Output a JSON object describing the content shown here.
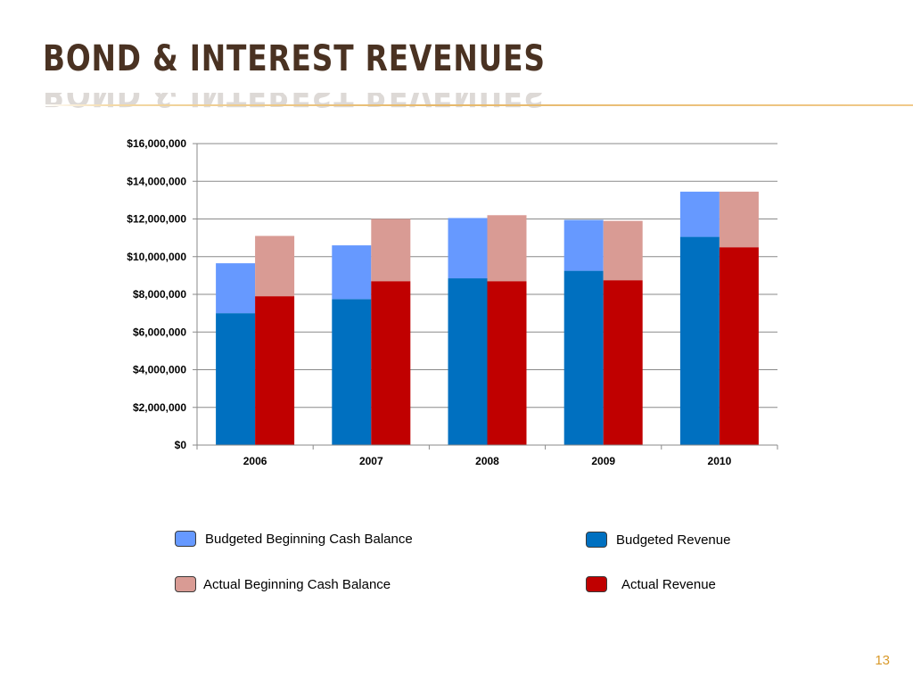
{
  "slide": {
    "title": "BOND & INTEREST REVENUES",
    "page_number": "13",
    "rule_color": "#e6b86a",
    "title_color": "#4a3222"
  },
  "chart_data": {
    "type": "bar",
    "stacked": true,
    "grouped": true,
    "title": "",
    "xlabel": "",
    "ylabel": "",
    "categories": [
      "2006",
      "2007",
      "2008",
      "2009",
      "2010"
    ],
    "ylim": [
      0,
      16000000
    ],
    "yticks": [
      0,
      2000000,
      4000000,
      6000000,
      8000000,
      10000000,
      12000000,
      14000000,
      16000000
    ],
    "ytick_labels": [
      "$0",
      "$2,000,000",
      "$4,000,000",
      "$6,000,000",
      "$8,000,000",
      "$10,000,000",
      "$12,000,000",
      "$14,000,000",
      "$16,000,000"
    ],
    "grid": true,
    "groups": [
      {
        "stack": "budgeted",
        "series": [
          {
            "name": "Budgeted Revenue",
            "color": "#0070c0",
            "values": [
              7000000,
              7750000,
              8850000,
              9250000,
              11050000
            ]
          },
          {
            "name": "Budgeted Beginning Cash Balance",
            "color": "#6699ff",
            "values": [
              2650000,
              2850000,
              3200000,
              2700000,
              2400000
            ]
          }
        ]
      },
      {
        "stack": "actual",
        "series": [
          {
            "name": "Actual Revenue",
            "color": "#c00000",
            "values": [
              7900000,
              8700000,
              8700000,
              8750000,
              10500000
            ]
          },
          {
            "name": "Actual Beginning Cash Balance",
            "color": "#d99b94",
            "values": [
              3200000,
              3300000,
              3500000,
              3150000,
              2950000
            ]
          }
        ]
      }
    ],
    "legend": [
      {
        "label": "Budgeted Beginning Cash Balance",
        "color": "#6699ff"
      },
      {
        "label": "Budgeted Revenue",
        "color": "#0070c0"
      },
      {
        "label": "Actual Beginning Cash Balance",
        "color": "#d99b94"
      },
      {
        "label": "Actual Revenue",
        "color": "#c00000"
      }
    ]
  }
}
